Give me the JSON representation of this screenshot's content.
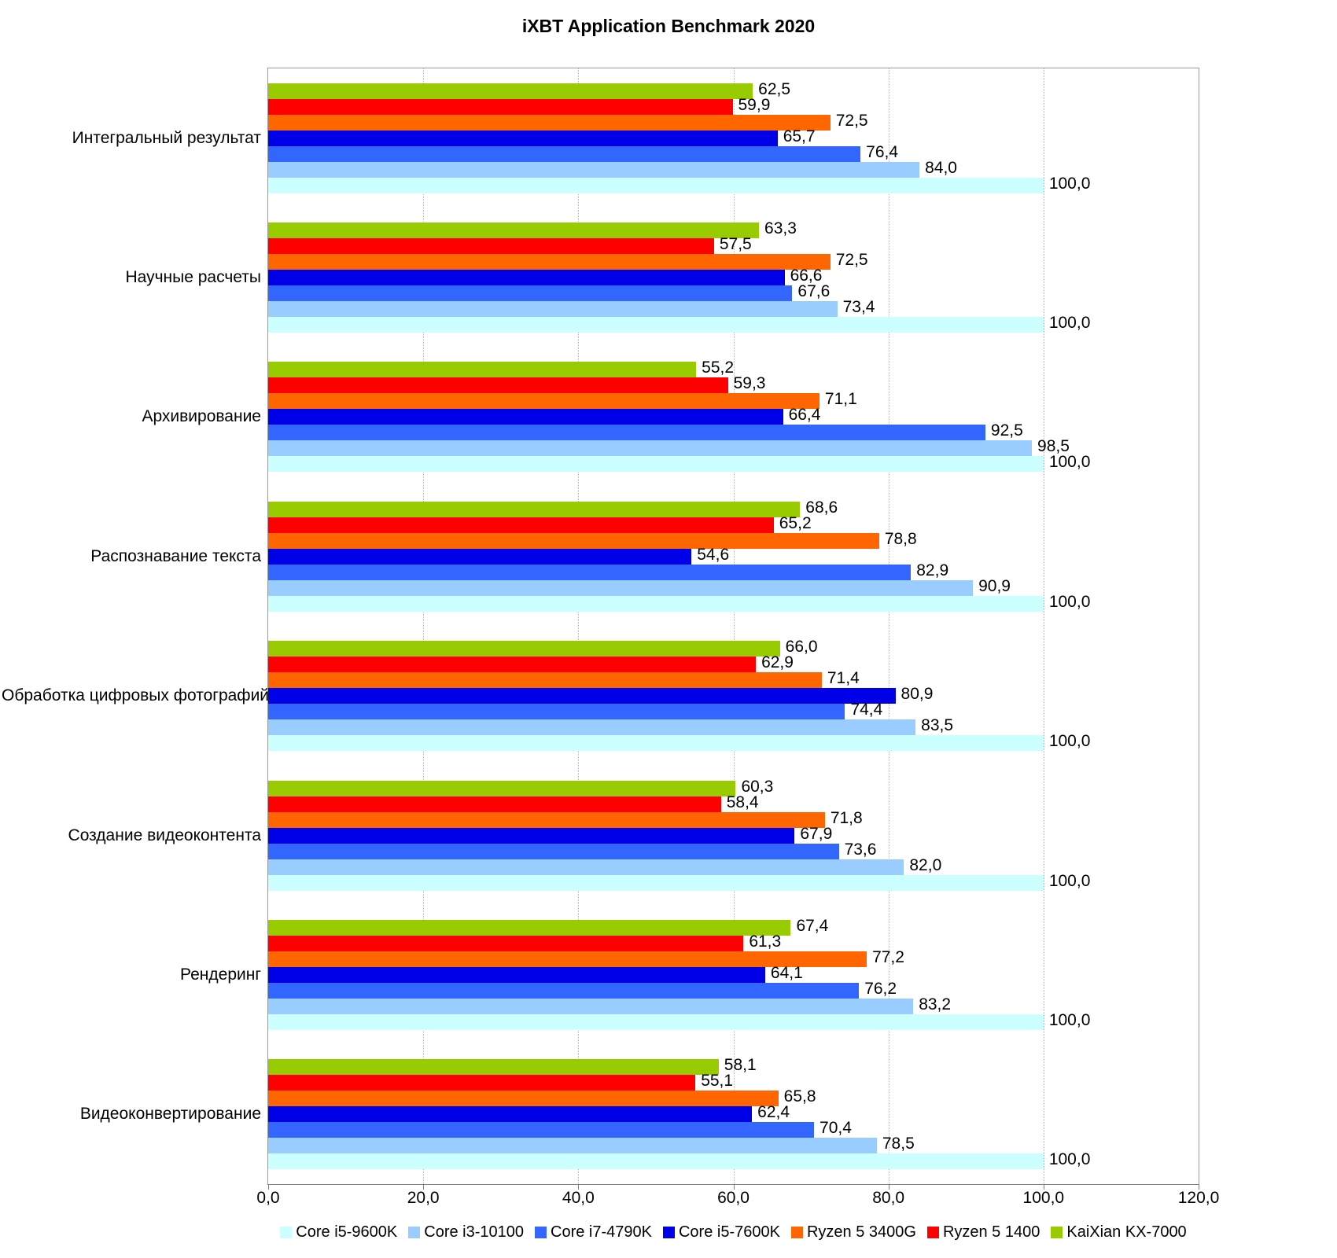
{
  "title": "iXBT Application Benchmark 2020",
  "chart_data": {
    "type": "bar",
    "orientation": "horizontal",
    "title": "iXBT Application Benchmark 2020",
    "xlabel": "",
    "ylabel": "",
    "xlim": [
      0,
      120
    ],
    "x_tick_values": [
      0,
      20,
      40,
      60,
      80,
      100,
      120
    ],
    "x_tick_labels": [
      "0,0",
      "20,0",
      "40,0",
      "60,0",
      "80,0",
      "100,0",
      "120,0"
    ],
    "grid": "vertical-dotted",
    "legend_position": "bottom",
    "decimal_separator": ",",
    "categories": [
      "Интегральный результат",
      "Научные расчеты",
      "Архивирование",
      "Распознавание текста",
      "Обработка цифровых фотографий",
      "Создание видеоконтента",
      "Рендеринг",
      "Видеоконвертирование"
    ],
    "series": [
      {
        "name": "Core i5-9600K",
        "color": "#CCFFFF",
        "values": [
          100.0,
          100.0,
          100.0,
          100.0,
          100.0,
          100.0,
          100.0,
          100.0
        ]
      },
      {
        "name": "Core i3-10100",
        "color": "#99CCFF",
        "values": [
          84.0,
          73.4,
          98.5,
          90.9,
          83.5,
          82.0,
          83.2,
          78.5
        ]
      },
      {
        "name": "Core i7-4790K",
        "color": "#3366FF",
        "values": [
          76.4,
          67.6,
          92.5,
          82.9,
          74.4,
          73.6,
          76.2,
          70.4
        ]
      },
      {
        "name": "Core i5-7600K",
        "color": "#0000E8",
        "values": [
          65.7,
          66.6,
          66.4,
          54.6,
          80.9,
          67.9,
          64.1,
          62.4
        ]
      },
      {
        "name": "Ryzen 5 3400G",
        "color": "#FF6600",
        "values": [
          72.5,
          72.5,
          71.1,
          78.8,
          71.4,
          71.8,
          77.2,
          65.8
        ]
      },
      {
        "name": "Ryzen 5 1400",
        "color": "#FE0000",
        "values": [
          59.9,
          57.5,
          59.3,
          65.2,
          62.9,
          58.4,
          61.3,
          55.1
        ]
      },
      {
        "name": "KaiXian KX-7000",
        "color": "#99CC00",
        "values": [
          62.5,
          63.3,
          55.2,
          68.6,
          66.0,
          60.3,
          67.4,
          58.1
        ]
      }
    ],
    "bar_order_top_to_bottom_within_group": [
      "KaiXian KX-7000",
      "Ryzen 5 1400",
      "Ryzen 5 3400G",
      "Core i5-7600K",
      "Core i7-4790K",
      "Core i3-10100",
      "Core i5-9600K"
    ]
  },
  "legend": {
    "items": [
      {
        "label": "Core i5-9600K",
        "color": "#CCFFFF"
      },
      {
        "label": "Core i3-10100",
        "color": "#99CCFF"
      },
      {
        "label": "Core i7-4790K",
        "color": "#3366FF"
      },
      {
        "label": "Core i5-7600K",
        "color": "#0000E8"
      },
      {
        "label": "Ryzen 5 3400G",
        "color": "#FF6600"
      },
      {
        "label": "Ryzen 5 1400",
        "color": "#FE0000"
      },
      {
        "label": "KaiXian KX-7000",
        "color": "#99CC00"
      }
    ]
  }
}
